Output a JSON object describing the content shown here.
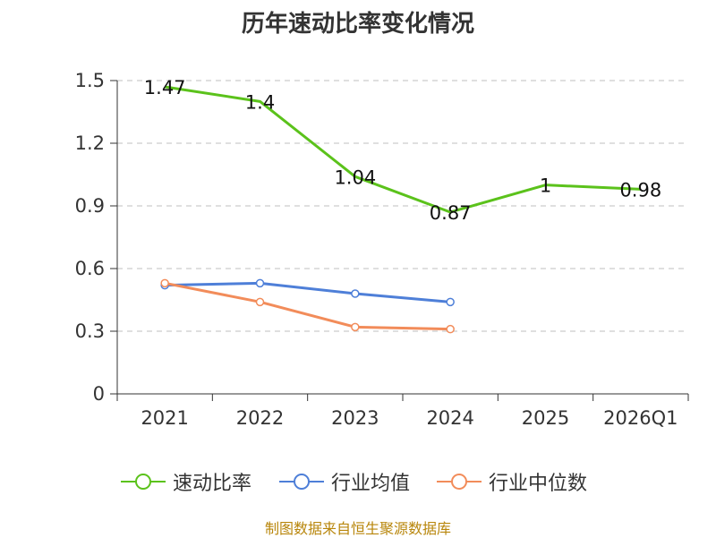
{
  "chart_data": {
    "type": "line",
    "title": "历年速动比率变化情况",
    "categories": [
      "2021",
      "2022",
      "2023",
      "2024",
      "2025",
      "2026Q1"
    ],
    "ylim": [
      0,
      1.5
    ],
    "yticks": [
      "0",
      "0.3",
      "0.6",
      "0.9",
      "1.2",
      "1.5"
    ],
    "ytick_values": [
      0,
      0.3,
      0.6,
      0.9,
      1.2,
      1.5
    ],
    "grid": true,
    "series": [
      {
        "name": "速动比率",
        "color": "#5bc21b",
        "values": [
          1.47,
          1.4,
          1.04,
          0.87,
          1.0,
          0.98
        ],
        "labels": [
          "1.47",
          "1.4",
          "1.04",
          "0.87",
          "1",
          "0.98"
        ],
        "show_markers": false
      },
      {
        "name": "行业均值",
        "color": "#4e7fd8",
        "values": [
          0.52,
          0.53,
          0.48,
          0.44,
          null,
          null
        ],
        "labels": null,
        "show_markers": true
      },
      {
        "name": "行业中位数",
        "color": "#f28c5a",
        "values": [
          0.53,
          0.44,
          0.32,
          0.31,
          null,
          null
        ],
        "labels": null,
        "show_markers": true
      }
    ],
    "legend_position": "bottom"
  },
  "source": "制图数据来自恒生聚源数据库"
}
